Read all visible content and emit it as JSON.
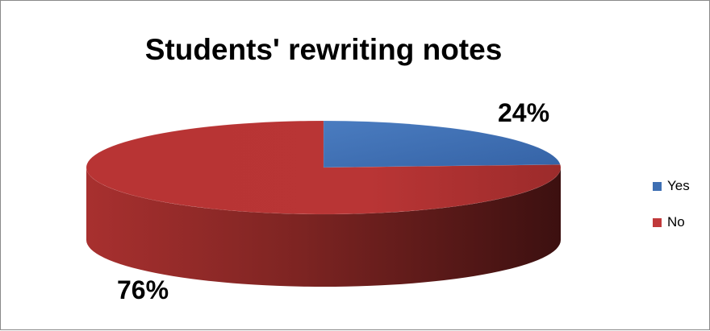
{
  "chart_data": {
    "type": "pie",
    "title": "Students' rewriting notes",
    "slices": [
      {
        "label": "Yes",
        "value": 24,
        "display": "24%",
        "color": "#3e6fb3"
      },
      {
        "label": "No",
        "value": 76,
        "display": "76%",
        "color": "#c0393b"
      }
    ],
    "legend": {
      "position": "right",
      "items": [
        "Yes",
        "No"
      ]
    },
    "style": "3d-pie"
  }
}
